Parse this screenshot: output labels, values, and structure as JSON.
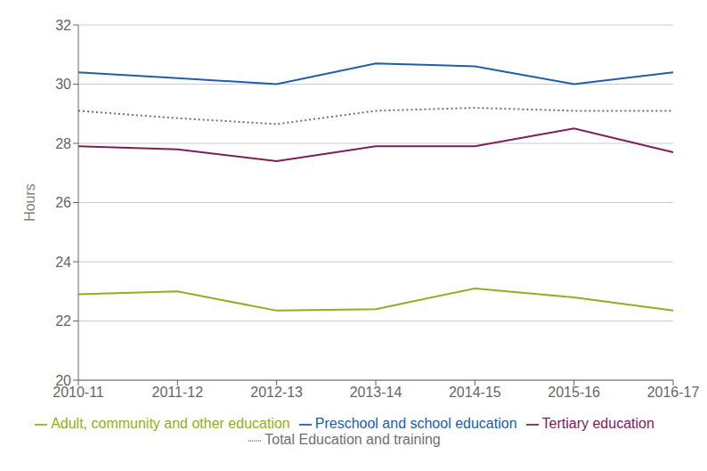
{
  "chart_data": {
    "type": "line",
    "categories": [
      "2010-11",
      "2011-12",
      "2012-13",
      "2013-14",
      "2014-15",
      "2015-16",
      "2016-17"
    ],
    "series": [
      {
        "name": "Preschool and school education",
        "color": "#215eaa",
        "line_style": "solid",
        "values": [
          30.4,
          30.2,
          30.0,
          30.7,
          30.6,
          30.0,
          30.4
        ]
      },
      {
        "name": "Tertiary education",
        "color": "#7b2158",
        "line_style": "solid",
        "values": [
          27.9,
          27.8,
          27.4,
          27.9,
          27.9,
          28.5,
          27.7
        ]
      },
      {
        "name": "Adult, community and other education",
        "color": "#8db022",
        "line_style": "solid",
        "values": [
          22.9,
          23.0,
          22.35,
          22.4,
          23.1,
          22.8,
          22.35
        ]
      },
      {
        "name": "Total Education and training",
        "color": "#707070",
        "line_style": "dotted",
        "values": [
          29.1,
          28.85,
          28.65,
          29.1,
          29.2,
          29.1,
          29.1
        ]
      }
    ],
    "ylabel": "Hours",
    "ylim": [
      20,
      32
    ],
    "yticks": [
      20,
      22,
      24,
      26,
      28,
      30,
      32
    ],
    "grid": true,
    "legend": "bottom"
  }
}
